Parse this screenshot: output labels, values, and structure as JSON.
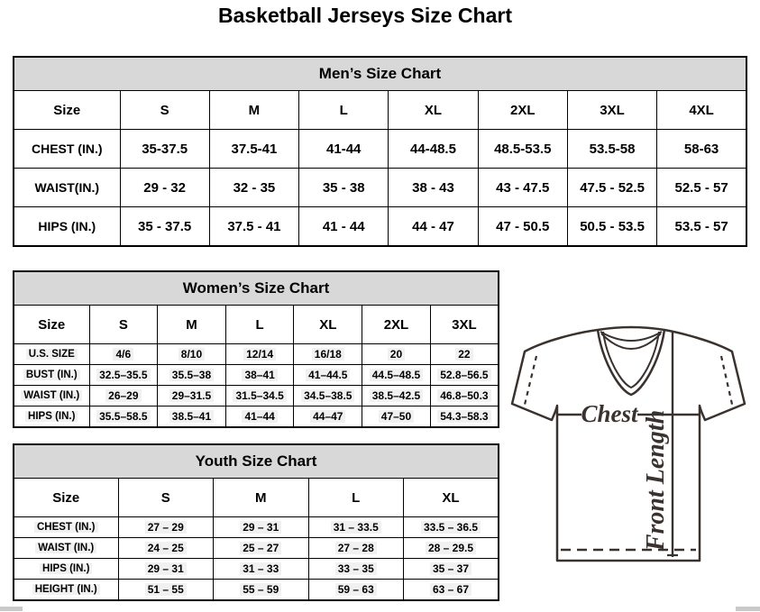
{
  "page_title": "Basketball Jerseys Size Chart",
  "mens_chart": {
    "title": "Men’s Size Chart",
    "columns": [
      "Size",
      "S",
      "M",
      "L",
      "XL",
      "2XL",
      "3XL",
      "4XL"
    ],
    "rows": [
      {
        "label": "CHEST (IN.)",
        "values": [
          "35-37.5",
          "37.5-41",
          "41-44",
          "44-48.5",
          "48.5-53.5",
          "53.5-58",
          "58-63"
        ]
      },
      {
        "label": "WAIST(IN.)",
        "values": [
          "29 - 32",
          "32 - 35",
          "35 - 38",
          "38 - 43",
          "43 - 47.5",
          "47.5 - 52.5",
          "52.5 - 57"
        ]
      },
      {
        "label": "HIPS (IN.)",
        "values": [
          "35 - 37.5",
          "37.5 - 41",
          "41 - 44",
          "44 - 47",
          "47 - 50.5",
          "50.5 - 53.5",
          "53.5 - 57"
        ]
      }
    ]
  },
  "womens_chart": {
    "title": "Women’s Size Chart",
    "columns": [
      "Size",
      "S",
      "M",
      "L",
      "XL",
      "2XL",
      "3XL"
    ],
    "rows": [
      {
        "label": "U.S. SIZE",
        "values": [
          "4/6",
          "8/10",
          "12/14",
          "16/18",
          "20",
          "22"
        ]
      },
      {
        "label": "BUST (IN.)",
        "values": [
          "32.5–35.5",
          "35.5–38",
          "38–41",
          "41–44.5",
          "44.5–48.5",
          "52.8–56.5"
        ]
      },
      {
        "label": "WAIST (IN.)",
        "values": [
          "26–29",
          "29–31.5",
          "31.5–34.5",
          "34.5–38.5",
          "38.5–42.5",
          "46.8–50.3"
        ]
      },
      {
        "label": "HIPS (IN.)",
        "values": [
          "35.5–58.5",
          "38.5–41",
          "41–44",
          "44–47",
          "47–50",
          "54.3–58.3"
        ]
      }
    ]
  },
  "youth_chart": {
    "title": "Youth Size Chart",
    "columns": [
      "Size",
      "S",
      "M",
      "L",
      "XL"
    ],
    "rows": [
      {
        "label": "CHEST (IN.)",
        "values": [
          "27 – 29",
          "29 – 31",
          "31 – 33.5",
          "33.5 – 36.5"
        ]
      },
      {
        "label": "WAIST (IN.)",
        "values": [
          "24 – 25",
          "25 – 27",
          "27 – 28",
          "28 – 29.5"
        ]
      },
      {
        "label": "HIPS (IN.)",
        "values": [
          "29 – 31",
          "31 – 33",
          "33 – 35",
          "35 – 37"
        ]
      },
      {
        "label": "HEIGHT (IN.)",
        "values": [
          "51 – 55",
          "55 – 59",
          "59 – 63",
          "63 – 67"
        ]
      }
    ]
  },
  "diagram": {
    "chest_label": "Chest",
    "front_length_label": "Front Length"
  },
  "colors": {
    "table_header_bg": "#d8d8d8",
    "cell_highlight_bg": "#f1f1f1",
    "table_border": "#000000",
    "diagram_stroke": "#3a322e"
  }
}
